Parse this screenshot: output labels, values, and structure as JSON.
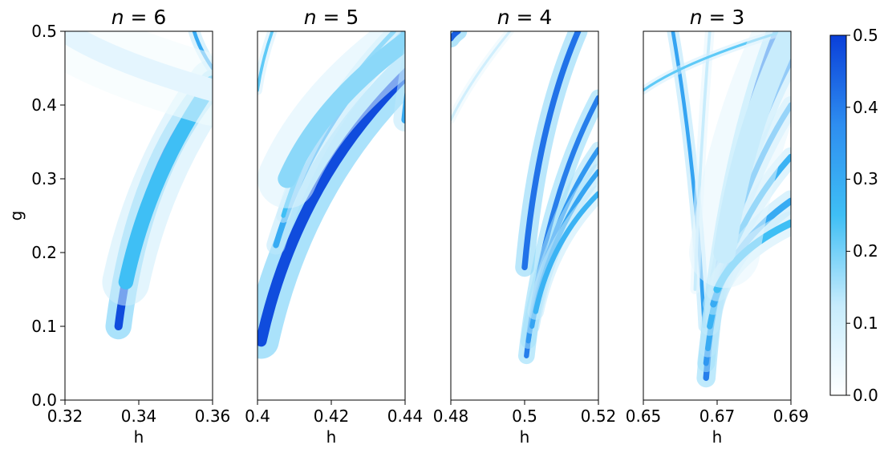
{
  "chart_data": {
    "type": "heatmap",
    "ylabel": "g",
    "ylim": [
      0.0,
      0.5
    ],
    "yticks": [
      "0.0",
      "0.1",
      "0.2",
      "0.3",
      "0.4",
      "0.5"
    ],
    "colorbar": {
      "range": [
        0.0,
        0.5
      ],
      "ticks": [
        "0.0",
        "0.1",
        "0.2",
        "0.3",
        "0.4",
        "0.5"
      ],
      "colors": [
        "#ffffff",
        "#c6ebfc",
        "#3fbff5",
        "#2e8ef0",
        "#0a3fd9"
      ]
    },
    "panels": [
      {
        "title_var": "n",
        "title_eq": " = 6",
        "xlabel": "h",
        "xlim": [
          0.32,
          0.36
        ],
        "xticks": [
          "0.32",
          "0.34",
          "0.36"
        ],
        "bands": [
          {
            "x0": 0.3345,
            "y0": 0.1,
            "x1": 0.36,
            "y1": 0.43,
            "bend": 0.65,
            "peak": 0.48,
            "w": 0.0022
          },
          {
            "x0": 0.3365,
            "y0": 0.16,
            "x1": 0.36,
            "y1": 0.43,
            "bend": 0.55,
            "peak": 0.25,
            "w": 0.004
          },
          {
            "x0": 0.355,
            "y0": 0.5,
            "x1": 0.36,
            "y1": 0.45,
            "bend": 0.5,
            "peak": 0.3,
            "w": 0.001
          },
          {
            "x0": 0.32,
            "y0": 0.5,
            "x1": 0.36,
            "y1": 0.42,
            "bend": 0.5,
            "peak": 0.06,
            "w": 0.006
          }
        ]
      },
      {
        "title_var": "n",
        "title_eq": " = 5",
        "xlabel": "h",
        "xlim": [
          0.4,
          0.44
        ],
        "xticks": [
          "0.4",
          "0.42",
          "0.44"
        ],
        "bands": [
          {
            "x0": 0.401,
            "y0": 0.08,
            "x1": 0.442,
            "y1": 0.45,
            "bend": 0.6,
            "peak": 0.48,
            "w": 0.003
          },
          {
            "x0": 0.405,
            "y0": 0.21,
            "x1": 0.44,
            "y1": 0.5,
            "bend": 0.55,
            "peak": 0.3,
            "w": 0.0016
          },
          {
            "x0": 0.407,
            "y0": 0.25,
            "x1": 0.437,
            "y1": 0.5,
            "bend": 0.55,
            "peak": 0.25,
            "w": 0.0012
          },
          {
            "x0": 0.4,
            "y0": 0.42,
            "x1": 0.404,
            "y1": 0.5,
            "bend": 0.5,
            "peak": 0.22,
            "w": 0.0008
          },
          {
            "x0": 0.408,
            "y0": 0.3,
            "x1": 0.444,
            "y1": 0.5,
            "bend": 0.55,
            "peak": 0.18,
            "w": 0.005
          },
          {
            "x0": 0.44,
            "y0": 0.38,
            "x1": 0.444,
            "y1": 0.5,
            "bend": 0.5,
            "peak": 0.3,
            "w": 0.002
          }
        ]
      },
      {
        "title_var": "n",
        "title_eq": " = 4",
        "xlabel": "h",
        "xlim": [
          0.48,
          0.52
        ],
        "xticks": [
          "0.48",
          "0.5",
          "0.52"
        ],
        "bands": [
          {
            "x0": 0.5,
            "y0": 0.18,
            "x1": 0.5145,
            "y1": 0.5,
            "bend": 0.6,
            "peak": 0.42,
            "w": 0.0016
          },
          {
            "x0": 0.5005,
            "y0": 0.06,
            "x1": 0.52,
            "y1": 0.41,
            "bend": 0.6,
            "peak": 0.4,
            "w": 0.0014
          },
          {
            "x0": 0.501,
            "y0": 0.08,
            "x1": 0.52,
            "y1": 0.34,
            "bend": 0.6,
            "peak": 0.35,
            "w": 0.0013
          },
          {
            "x0": 0.502,
            "y0": 0.1,
            "x1": 0.52,
            "y1": 0.31,
            "bend": 0.6,
            "peak": 0.32,
            "w": 0.0013
          },
          {
            "x0": 0.503,
            "y0": 0.12,
            "x1": 0.52,
            "y1": 0.28,
            "bend": 0.6,
            "peak": 0.28,
            "w": 0.0014
          },
          {
            "x0": 0.48,
            "y0": 0.38,
            "x1": 0.496,
            "y1": 0.5,
            "bend": 0.45,
            "peak": 0.1,
            "w": 0.0007
          },
          {
            "x0": 0.48,
            "y0": 0.49,
            "x1": 0.482,
            "y1": 0.5,
            "bend": 0.5,
            "peak": 0.45,
            "w": 0.0015
          }
        ]
      },
      {
        "title_var": "n",
        "title_eq": " = 3",
        "xlabel": "h",
        "xlim": [
          0.65,
          0.69
        ],
        "xticks": [
          "0.65",
          "0.67",
          "0.69"
        ],
        "bands": [
          {
            "x0": 0.6665,
            "y0": 0.1,
            "x1": 0.658,
            "y1": 0.5,
            "bend": 0.55,
            "peak": 0.32,
            "w": 0.001
          },
          {
            "x0": 0.667,
            "y0": 0.03,
            "x1": 0.686,
            "y1": 0.5,
            "bend": 0.6,
            "peak": 0.4,
            "w": 0.0016
          },
          {
            "x0": 0.667,
            "y0": 0.05,
            "x1": 0.69,
            "y1": 0.46,
            "bend": 0.6,
            "peak": 0.35,
            "w": 0.0015
          },
          {
            "x0": 0.6675,
            "y0": 0.07,
            "x1": 0.69,
            "y1": 0.4,
            "bend": 0.6,
            "peak": 0.3,
            "w": 0.0015
          },
          {
            "x0": 0.668,
            "y0": 0.1,
            "x1": 0.69,
            "y1": 0.33,
            "bend": 0.6,
            "peak": 0.28,
            "w": 0.0016
          },
          {
            "x0": 0.669,
            "y0": 0.13,
            "x1": 0.69,
            "y1": 0.27,
            "bend": 0.6,
            "peak": 0.3,
            "w": 0.0018
          },
          {
            "x0": 0.67,
            "y0": 0.15,
            "x1": 0.69,
            "y1": 0.24,
            "bend": 0.6,
            "peak": 0.25,
            "w": 0.002
          },
          {
            "x0": 0.664,
            "y0": 0.15,
            "x1": 0.668,
            "y1": 0.5,
            "bend": 0.5,
            "peak": 0.12,
            "w": 0.0008
          },
          {
            "x0": 0.65,
            "y0": 0.42,
            "x1": 0.688,
            "y1": 0.5,
            "bend": 0.5,
            "peak": 0.22,
            "w": 0.0007
          },
          {
            "x0": 0.672,
            "y0": 0.2,
            "x1": 0.69,
            "y1": 0.5,
            "bend": 0.55,
            "peak": 0.12,
            "w": 0.006
          }
        ]
      }
    ]
  }
}
